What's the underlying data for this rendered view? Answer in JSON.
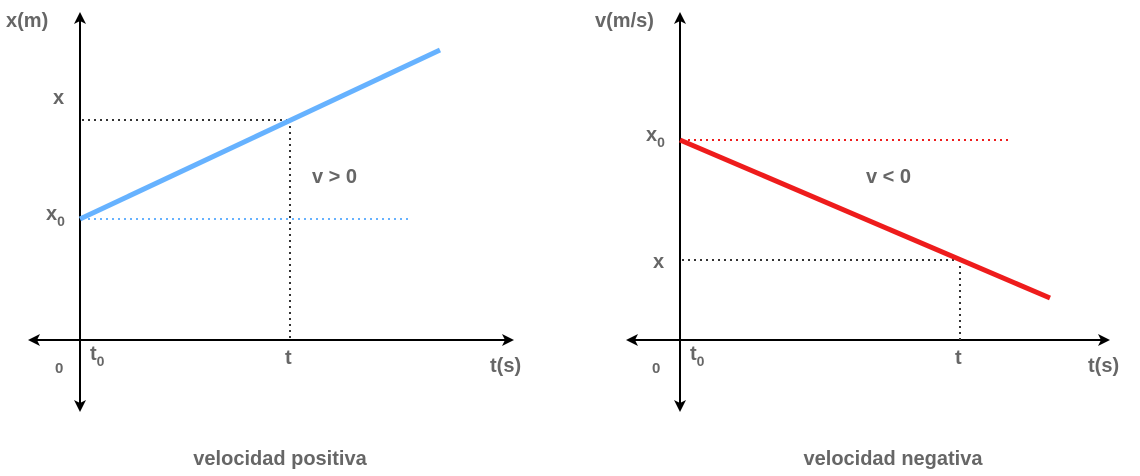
{
  "colors": {
    "axis": "#000000",
    "text": "#666666",
    "positive_line": "#66b2ff",
    "negative_line": "#ee1c1c",
    "guide": "#333333"
  },
  "left_graph": {
    "y_axis_label": "x(m)",
    "x_axis_label": "t(s)",
    "origin_label": "0",
    "t0_main": "t",
    "t0_sub": "0",
    "t_label": "t",
    "x_label": "x",
    "x0_main": "x",
    "x0_sub": "0",
    "annotation": "v > 0",
    "caption": "velocidad positiva"
  },
  "right_graph": {
    "y_axis_label": "v(m/s)",
    "x_axis_label": "t(s)",
    "origin_label": "0",
    "t0_main": "t",
    "t0_sub": "0",
    "t_label": "t",
    "x_label": "x",
    "x0_main": "x",
    "x0_sub": "0",
    "annotation": "v < 0",
    "caption": "velocidad negativa"
  }
}
